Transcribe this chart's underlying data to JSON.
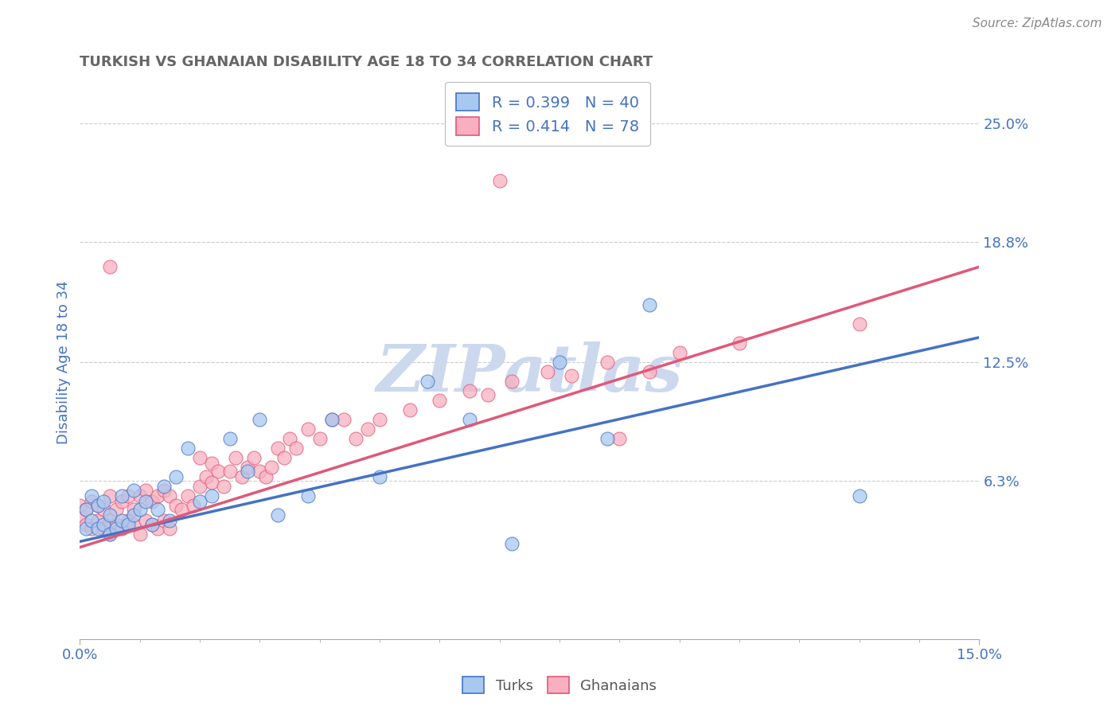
{
  "title": "TURKISH VS GHANAIAN DISABILITY AGE 18 TO 34 CORRELATION CHART",
  "source_text": "Source: ZipAtlas.com",
  "ylabel": "Disability Age 18 to 34",
  "xlim": [
    0.0,
    0.15
  ],
  "ylim": [
    -0.02,
    0.27
  ],
  "xtick_labels": [
    "0.0%",
    "15.0%"
  ],
  "xtick_pos": [
    0.0,
    0.15
  ],
  "ytick_labels": [
    "6.3%",
    "12.5%",
    "18.8%",
    "25.0%"
  ],
  "ytick_values": [
    0.063,
    0.125,
    0.188,
    0.25
  ],
  "grid_color": "#cccccc",
  "background_color": "#ffffff",
  "turks_color": "#a8c8f0",
  "ghanaians_color": "#f8b0c0",
  "turks_line_color": "#4472C4",
  "ghanaians_line_color": "#E05878",
  "legend_r_turks": "R = 0.399",
  "legend_n_turks": "N = 40",
  "legend_r_ghana": "R = 0.414",
  "legend_n_ghana": "N = 78",
  "turks_scatter_x": [
    0.001,
    0.001,
    0.002,
    0.002,
    0.003,
    0.003,
    0.004,
    0.004,
    0.005,
    0.005,
    0.006,
    0.007,
    0.007,
    0.008,
    0.009,
    0.009,
    0.01,
    0.011,
    0.012,
    0.013,
    0.014,
    0.015,
    0.016,
    0.018,
    0.02,
    0.022,
    0.025,
    0.028,
    0.03,
    0.033,
    0.038,
    0.042,
    0.05,
    0.058,
    0.065,
    0.072,
    0.08,
    0.088,
    0.095,
    0.13
  ],
  "turks_scatter_y": [
    0.048,
    0.038,
    0.055,
    0.042,
    0.038,
    0.05,
    0.04,
    0.052,
    0.035,
    0.045,
    0.038,
    0.042,
    0.055,
    0.04,
    0.045,
    0.058,
    0.048,
    0.052,
    0.04,
    0.048,
    0.06,
    0.042,
    0.065,
    0.08,
    0.052,
    0.055,
    0.085,
    0.068,
    0.095,
    0.045,
    0.055,
    0.095,
    0.065,
    0.115,
    0.095,
    0.03,
    0.125,
    0.085,
    0.155,
    0.055
  ],
  "ghana_scatter_x": [
    0.0,
    0.0,
    0.001,
    0.001,
    0.002,
    0.002,
    0.003,
    0.003,
    0.004,
    0.004,
    0.005,
    0.005,
    0.005,
    0.006,
    0.006,
    0.007,
    0.007,
    0.008,
    0.008,
    0.009,
    0.009,
    0.01,
    0.01,
    0.011,
    0.011,
    0.012,
    0.012,
    0.013,
    0.013,
    0.014,
    0.014,
    0.015,
    0.015,
    0.016,
    0.017,
    0.018,
    0.019,
    0.02,
    0.02,
    0.021,
    0.022,
    0.022,
    0.023,
    0.024,
    0.025,
    0.026,
    0.027,
    0.028,
    0.029,
    0.03,
    0.031,
    0.032,
    0.033,
    0.034,
    0.035,
    0.036,
    0.038,
    0.04,
    0.042,
    0.044,
    0.046,
    0.048,
    0.05,
    0.055,
    0.06,
    0.065,
    0.068,
    0.072,
    0.078,
    0.082,
    0.088,
    0.09,
    0.095,
    0.1,
    0.11,
    0.13,
    0.005,
    0.07
  ],
  "ghana_scatter_y": [
    0.045,
    0.05,
    0.04,
    0.048,
    0.038,
    0.052,
    0.042,
    0.05,
    0.038,
    0.048,
    0.035,
    0.042,
    0.055,
    0.04,
    0.048,
    0.038,
    0.052,
    0.042,
    0.055,
    0.04,
    0.048,
    0.035,
    0.055,
    0.042,
    0.058,
    0.04,
    0.052,
    0.038,
    0.055,
    0.042,
    0.058,
    0.038,
    0.055,
    0.05,
    0.048,
    0.055,
    0.05,
    0.06,
    0.075,
    0.065,
    0.062,
    0.072,
    0.068,
    0.06,
    0.068,
    0.075,
    0.065,
    0.07,
    0.075,
    0.068,
    0.065,
    0.07,
    0.08,
    0.075,
    0.085,
    0.08,
    0.09,
    0.085,
    0.095,
    0.095,
    0.085,
    0.09,
    0.095,
    0.1,
    0.105,
    0.11,
    0.108,
    0.115,
    0.12,
    0.118,
    0.125,
    0.085,
    0.12,
    0.13,
    0.135,
    0.145,
    0.175,
    0.22
  ],
  "turks_line": {
    "x0": 0.0,
    "y0": 0.031,
    "x1": 0.15,
    "y1": 0.138
  },
  "ghana_line": {
    "x0": 0.0,
    "y0": 0.028,
    "x1": 0.15,
    "y1": 0.175
  },
  "watermark": "ZIPatlas",
  "watermark_color": "#ccd8ee",
  "title_color": "#666666",
  "axis_label_color": "#4472C4",
  "tick_label_color": "#4472C4",
  "title_fontsize": 13,
  "source_color": "#888888",
  "legend_text_color": "#4472C4"
}
